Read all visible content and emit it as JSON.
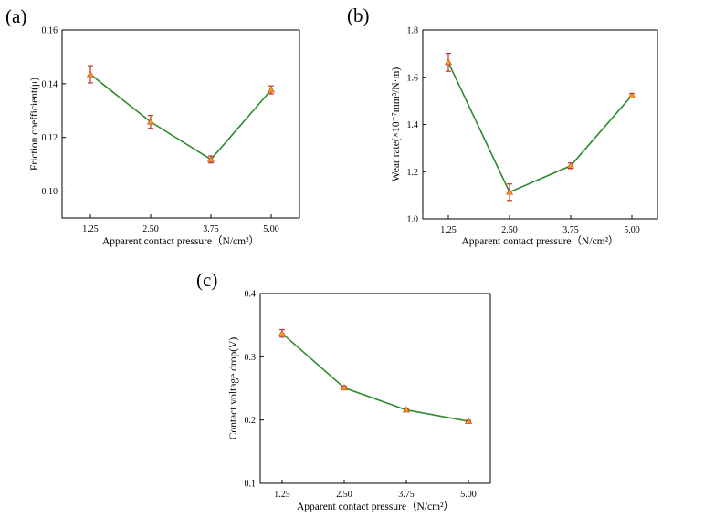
{
  "chart_data": [
    {
      "panel_label": "(a)",
      "type": "line",
      "title": "",
      "xlabel": "Apparent contact pressure（N/cm²）",
      "ylabel": "Friction coefficient(μ)",
      "categories": [
        "1.25",
        "2.50",
        "3.75",
        "5.00"
      ],
      "values": [
        0.1435,
        0.1258,
        0.1118,
        0.1377
      ],
      "errors": [
        0.0032,
        0.0024,
        0.0013,
        0.0015
      ],
      "ylim": [
        0.09,
        0.16
      ],
      "yticks": [
        "0.10",
        "0.12",
        "0.14",
        "0.16"
      ],
      "line_color": "#2e8b2e",
      "marker_color": "#f39a1e",
      "error_color": "#c0392b",
      "grid": false,
      "legend": "none"
    },
    {
      "panel_label": "(b)",
      "type": "line",
      "title": "",
      "xlabel": "Apparent contact pressure（N/cm²）",
      "ylabel": "Wear rate(×10⁻⁷mm³/N·m)",
      "categories": [
        "1.25",
        "2.50",
        "3.75",
        "5.00"
      ],
      "values": [
        1.663,
        1.113,
        1.225,
        1.523
      ],
      "errors": [
        0.038,
        0.035,
        0.012,
        0.008
      ],
      "ylim": [
        1.0,
        1.8
      ],
      "yticks": [
        "1.0",
        "1.2",
        "1.4",
        "1.6",
        "1.8"
      ],
      "line_color": "#2e8b2e",
      "marker_color": "#f39a1e",
      "error_color": "#c0392b",
      "grid": false,
      "legend": "none"
    },
    {
      "panel_label": "(c)",
      "type": "line",
      "title": "",
      "xlabel": "Apparent contact pressure（N/cm²）",
      "ylabel": "Contact voltage drop(V)",
      "categories": [
        "1.25",
        "2.50",
        "3.75",
        "5.00"
      ],
      "values": [
        0.337,
        0.251,
        0.216,
        0.198
      ],
      "errors": [
        0.006,
        0.003,
        0.002,
        0.0015
      ],
      "ylim": [
        0.1,
        0.4
      ],
      "yticks": [
        "0.1",
        "0.2",
        "0.3",
        "0.4"
      ],
      "line_color": "#2e8b2e",
      "marker_color": "#f39a1e",
      "error_color": "#c0392b",
      "grid": false,
      "legend": "none"
    }
  ]
}
